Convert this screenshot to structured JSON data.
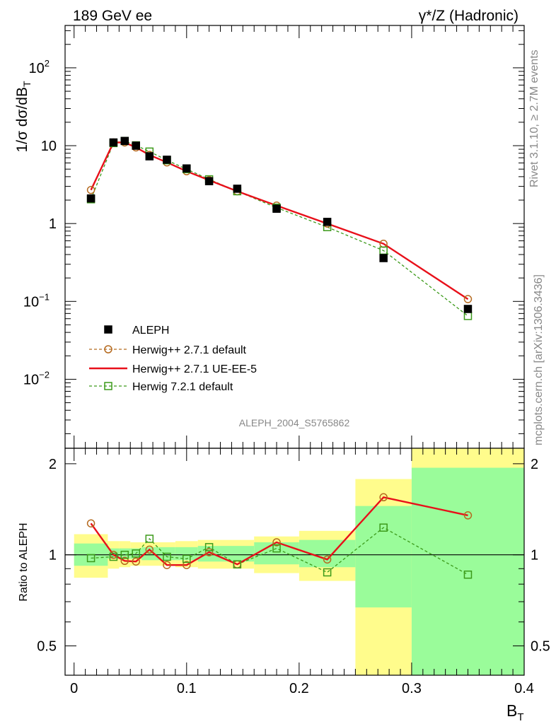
{
  "header": {
    "left_title": "189 GeV ee",
    "right_title": "γ*/Z (Hadronic)"
  },
  "watermark": "ALEPH_2004_S5765862",
  "side_labels": {
    "rivet": "Rivet 3.1.10, ≥ 2.7M events",
    "mcplots": "mcplots.cern.ch [arXiv:1306.3436]"
  },
  "chart_data": [
    {
      "type": "line",
      "panel": "main",
      "title": "",
      "ylabel": "1/σ  dσ/dB_T",
      "yscale": "log",
      "ylim": [
        0.0013,
        350
      ],
      "xlim": [
        -0.008,
        0.4
      ],
      "yticks_labeled": [
        "10^-1",
        "1",
        "10",
        "10^2",
        "10^-2"
      ],
      "legend_position": "lower-left",
      "series": [
        {
          "name": "ALEPH",
          "style": "black-square-marker",
          "color": "#000000",
          "x": [
            0.015,
            0.035,
            0.045,
            0.055,
            0.067,
            0.0825,
            0.1,
            0.12,
            0.145,
            0.18,
            0.225,
            0.275,
            0.35
          ],
          "y": [
            2.1,
            11.0,
            11.5,
            10.0,
            7.3,
            6.6,
            5.1,
            3.5,
            2.8,
            1.55,
            1.05,
            0.36,
            0.08
          ]
        },
        {
          "name": "Herwig++ 2.7.1 default",
          "style": "brown-dashed-circle",
          "color": "#b56a1f",
          "x": [
            0.015,
            0.035,
            0.045,
            0.055,
            0.067,
            0.0825,
            0.1,
            0.12,
            0.145,
            0.18,
            0.225,
            0.275,
            0.35
          ],
          "y": [
            2.7,
            11.0,
            11.0,
            9.5,
            7.6,
            6.1,
            4.7,
            3.6,
            2.6,
            1.7,
            1.0,
            0.55,
            0.107
          ]
        },
        {
          "name": "Herwig++ 2.7.1 UE-EE-5",
          "style": "red-solid",
          "color": "#e8101a",
          "x": [
            0.015,
            0.035,
            0.045,
            0.055,
            0.067,
            0.0825,
            0.1,
            0.12,
            0.145,
            0.18,
            0.225,
            0.275,
            0.35
          ],
          "y": [
            2.7,
            11.0,
            11.0,
            9.5,
            7.6,
            6.1,
            4.7,
            3.6,
            2.6,
            1.7,
            1.0,
            0.55,
            0.107
          ]
        },
        {
          "name": "Herwig 7.2.1 default",
          "style": "green-dashed-square",
          "color": "#3c9a1a",
          "x": [
            0.015,
            0.035,
            0.045,
            0.055,
            0.067,
            0.0825,
            0.1,
            0.12,
            0.145,
            0.18,
            0.225,
            0.275,
            0.35
          ],
          "y": [
            2.05,
            10.8,
            11.5,
            10.1,
            8.4,
            6.5,
            5.0,
            3.7,
            2.6,
            1.6,
            0.9,
            0.45,
            0.065
          ]
        }
      ]
    },
    {
      "type": "line",
      "panel": "ratio",
      "ylabel": "Ratio to ALEPH",
      "xlabel": "B_T",
      "yscale": "log",
      "ylim": [
        0.4,
        2.25
      ],
      "xlim": [
        -0.008,
        0.4
      ],
      "xticks": [
        "0",
        "0.1",
        "0.2",
        "0.3",
        "0.4"
      ],
      "yticks": [
        "0.5",
        "1",
        "2"
      ],
      "reference_line": 1.0,
      "bands": {
        "x_edges": [
          0.0,
          0.03,
          0.04,
          0.05,
          0.06,
          0.075,
          0.09,
          0.11,
          0.13,
          0.16,
          0.2,
          0.25,
          0.3,
          0.4
        ],
        "stat_low": [
          0.92,
          0.97,
          0.97,
          0.97,
          0.96,
          0.96,
          0.96,
          0.95,
          0.95,
          0.93,
          0.91,
          0.67,
          0.31
        ],
        "stat_high": [
          1.09,
          1.05,
          1.05,
          1.05,
          1.06,
          1.06,
          1.06,
          1.07,
          1.07,
          1.1,
          1.12,
          1.45,
          1.94
        ],
        "tot_low": [
          0.84,
          0.9,
          0.91,
          0.92,
          0.92,
          0.92,
          0.91,
          0.9,
          0.9,
          0.87,
          0.82,
          0.31,
          0.31
        ],
        "tot_high": [
          1.17,
          1.11,
          1.11,
          1.1,
          1.1,
          1.1,
          1.11,
          1.12,
          1.12,
          1.15,
          1.2,
          1.78,
          2.4
        ],
        "stat_color": "#9afc9a",
        "total_color": "#fffc8c"
      },
      "series": [
        {
          "name": "Herwig++ 2.7.1 default",
          "color": "#b56a1f",
          "x": [
            0.015,
            0.035,
            0.045,
            0.055,
            0.067,
            0.0825,
            0.1,
            0.12,
            0.145,
            0.18,
            0.225,
            0.275,
            0.35
          ],
          "y": [
            1.27,
            1.0,
            0.955,
            0.95,
            1.04,
            0.925,
            0.925,
            1.02,
            0.93,
            1.1,
            0.965,
            1.55,
            1.35
          ]
        },
        {
          "name": "Herwig++ 2.7.1 UE-EE-5",
          "color": "#e8101a",
          "x": [
            0.015,
            0.035,
            0.045,
            0.055,
            0.067,
            0.0825,
            0.1,
            0.12,
            0.145,
            0.18,
            0.225,
            0.275,
            0.35
          ],
          "y": [
            1.27,
            1.0,
            0.955,
            0.95,
            1.04,
            0.925,
            0.925,
            1.02,
            0.93,
            1.1,
            0.965,
            1.55,
            1.35
          ]
        },
        {
          "name": "Herwig 7.2.1 default",
          "color": "#3c9a1a",
          "x": [
            0.015,
            0.035,
            0.045,
            0.055,
            0.067,
            0.0825,
            0.1,
            0.12,
            0.145,
            0.18,
            0.225,
            0.275,
            0.35
          ],
          "y": [
            0.975,
            0.985,
            1.0,
            1.01,
            1.13,
            0.985,
            0.97,
            1.06,
            0.93,
            1.05,
            0.875,
            1.23,
            0.86
          ]
        }
      ]
    }
  ]
}
